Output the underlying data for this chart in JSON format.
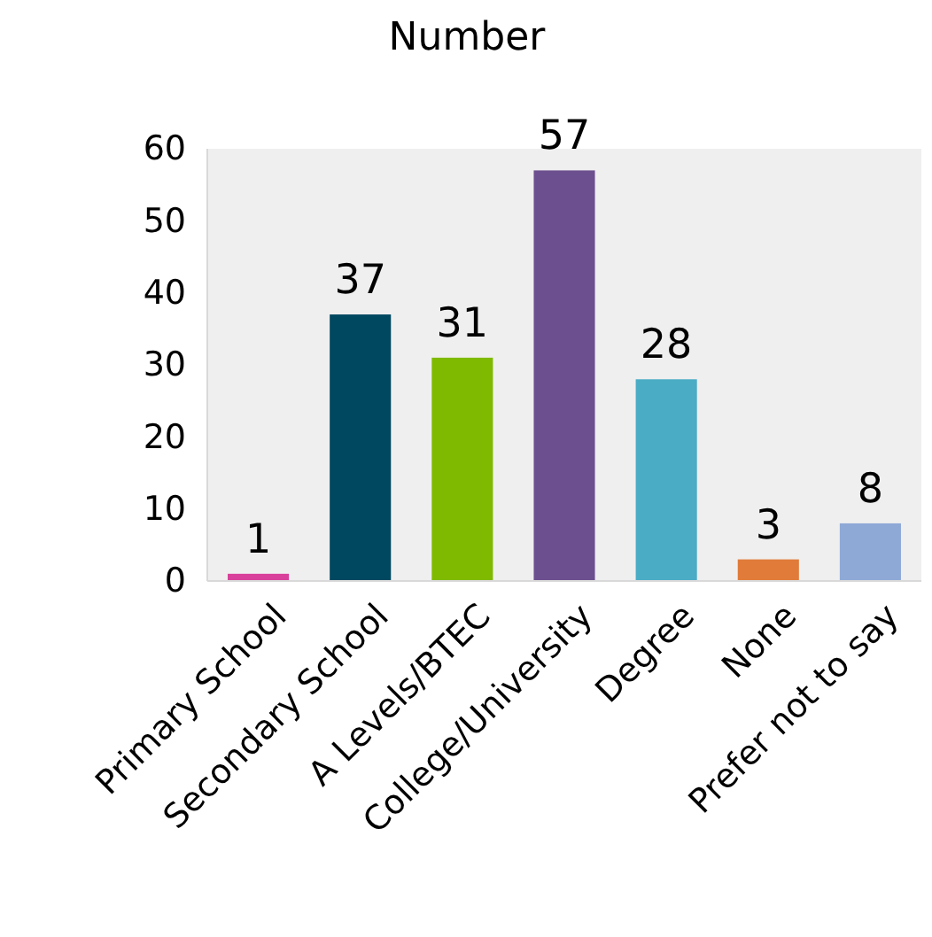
{
  "chart_data": {
    "type": "bar",
    "title": "Number",
    "categories": [
      "Primary School",
      "Secondary School",
      "A Levels/BTEC",
      "College/University",
      "Degree",
      "None",
      "Prefer not to say"
    ],
    "values": [
      1,
      37,
      31,
      57,
      28,
      3,
      8
    ],
    "colors": [
      "#d9409b",
      "#00485f",
      "#7fba00",
      "#6c4f8e",
      "#4aacc5",
      "#e07b39",
      "#8ea9d6"
    ],
    "ylim": [
      0,
      60
    ],
    "yticks": [
      0,
      10,
      20,
      30,
      40,
      50,
      60
    ],
    "data_labels": true
  }
}
